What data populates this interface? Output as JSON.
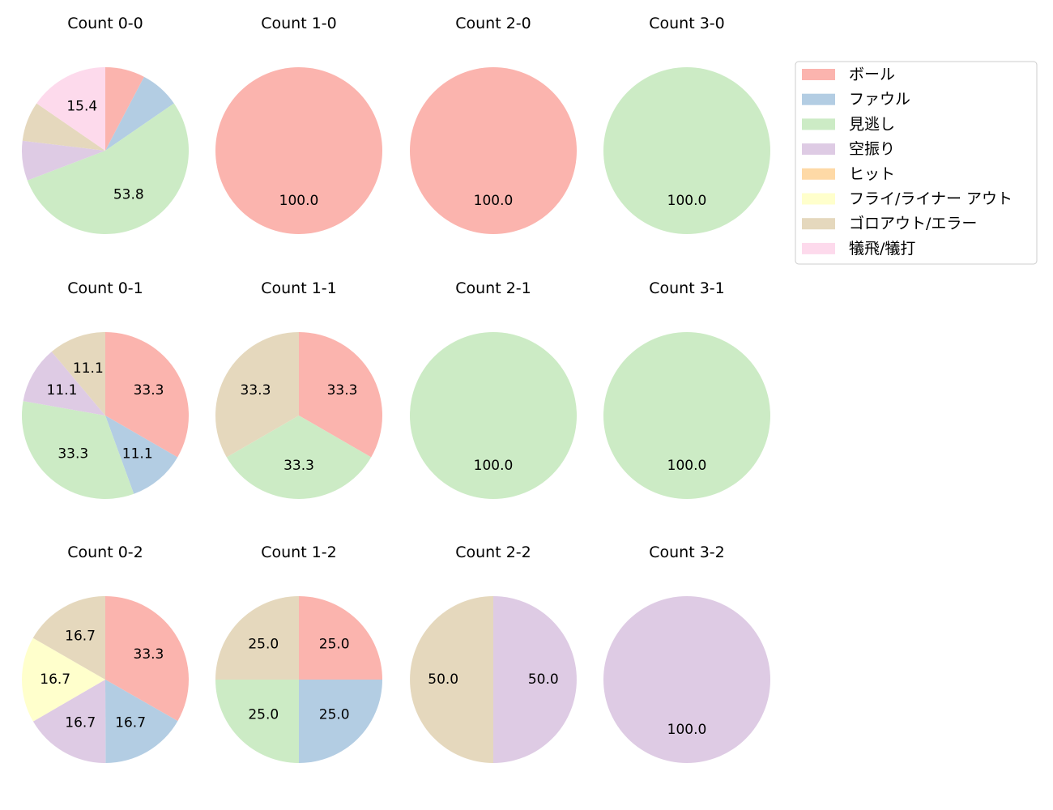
{
  "legend": {
    "items": [
      {
        "label": "ボール",
        "color": "#fbb4ae"
      },
      {
        "label": "ファウル",
        "color": "#b3cde3"
      },
      {
        "label": "見逃し",
        "color": "#ccebc5"
      },
      {
        "label": "空振り",
        "color": "#decbe4"
      },
      {
        "label": "ヒット",
        "color": "#fed9a6"
      },
      {
        "label": "フライ/ライナー アウト",
        "color": "#ffffcc"
      },
      {
        "label": "ゴロアウト/エラー",
        "color": "#e5d8bd"
      },
      {
        "label": "犠飛/犠打",
        "color": "#fddaec"
      }
    ]
  },
  "chart_data": [
    {
      "type": "pie",
      "title": "Count 0-0",
      "categories": [
        "ボール",
        "ファウル",
        "見逃し",
        "空振り",
        "ゴロアウト/エラー",
        "犠飛/犠打"
      ],
      "values": [
        7.7,
        7.7,
        53.8,
        7.7,
        7.7,
        15.4
      ],
      "labels": [
        "",
        "",
        "53.8",
        "",
        "",
        "15.4"
      ]
    },
    {
      "type": "pie",
      "title": "Count 1-0",
      "categories": [
        "ボール"
      ],
      "values": [
        100.0
      ],
      "labels": [
        "100.0"
      ]
    },
    {
      "type": "pie",
      "title": "Count 2-0",
      "categories": [
        "ボール"
      ],
      "values": [
        100.0
      ],
      "labels": [
        "100.0"
      ]
    },
    {
      "type": "pie",
      "title": "Count 3-0",
      "categories": [
        "見逃し"
      ],
      "values": [
        100.0
      ],
      "labels": [
        "100.0"
      ]
    },
    {
      "type": "pie",
      "title": "Count 0-1",
      "categories": [
        "ボール",
        "ファウル",
        "見逃し",
        "空振り",
        "ゴロアウト/エラー"
      ],
      "values": [
        33.3,
        11.1,
        33.3,
        11.1,
        11.1
      ],
      "labels": [
        "33.3",
        "11.1",
        "33.3",
        "11.1",
        "11.1"
      ]
    },
    {
      "type": "pie",
      "title": "Count 1-1",
      "categories": [
        "ボール",
        "見逃し",
        "ゴロアウト/エラー"
      ],
      "values": [
        33.3,
        33.3,
        33.3
      ],
      "labels": [
        "33.3",
        "33.3",
        "33.3"
      ]
    },
    {
      "type": "pie",
      "title": "Count 2-1",
      "categories": [
        "見逃し"
      ],
      "values": [
        100.0
      ],
      "labels": [
        "100.0"
      ]
    },
    {
      "type": "pie",
      "title": "Count 3-1",
      "categories": [
        "見逃し"
      ],
      "values": [
        100.0
      ],
      "labels": [
        "100.0"
      ]
    },
    {
      "type": "pie",
      "title": "Count 0-2",
      "categories": [
        "ボール",
        "ファウル",
        "空振り",
        "フライ/ライナー アウト",
        "ゴロアウト/エラー"
      ],
      "values": [
        33.3,
        16.7,
        16.7,
        16.7,
        16.7
      ],
      "labels": [
        "33.3",
        "16.7",
        "16.7",
        "16.7",
        "16.7"
      ]
    },
    {
      "type": "pie",
      "title": "Count 1-2",
      "categories": [
        "ボール",
        "ファウル",
        "見逃し",
        "ゴロアウト/エラー"
      ],
      "values": [
        25.0,
        25.0,
        25.0,
        25.0
      ],
      "labels": [
        "25.0",
        "25.0",
        "25.0",
        "25.0"
      ]
    },
    {
      "type": "pie",
      "title": "Count 2-2",
      "categories": [
        "空振り",
        "ゴロアウト/エラー"
      ],
      "values": [
        50.0,
        50.0
      ],
      "labels": [
        "50.0",
        "50.0"
      ]
    },
    {
      "type": "pie",
      "title": "Count 3-2",
      "categories": [
        "空振り"
      ],
      "values": [
        100.0
      ],
      "labels": [
        "100.0"
      ]
    }
  ]
}
